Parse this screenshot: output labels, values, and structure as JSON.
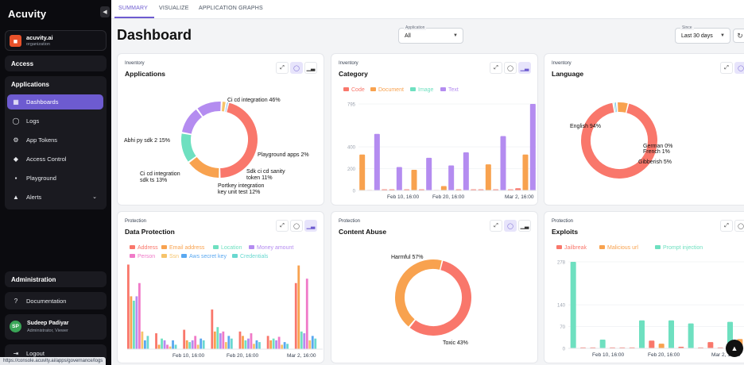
{
  "app": {
    "logo": "Acuvity",
    "collapse_icon": "chevron-left-icon"
  },
  "org": {
    "name": "acuvity.ai",
    "type": "organization"
  },
  "sidebar": {
    "access_title": "Access",
    "applications_title": "Applications",
    "items": [
      {
        "label": "Dashboards",
        "icon": "dashboard-icon",
        "active": true
      },
      {
        "label": "Logs",
        "icon": "logs-icon"
      },
      {
        "label": "App Tokens",
        "icon": "token-icon"
      },
      {
        "label": "Access Control",
        "icon": "shield-icon"
      },
      {
        "label": "Playground",
        "icon": "chat-icon"
      },
      {
        "label": "Alerts",
        "icon": "bell-icon"
      }
    ],
    "administration_title": "Administration",
    "documentation_label": "Documentation",
    "user": {
      "initials": "SP",
      "name": "Sudeep Padiyar",
      "role": "Administrator, Viewer"
    },
    "logout_label": "Logout"
  },
  "status_url": "https://console.acuvity.ai/apps/governance/logs",
  "tabs": [
    "SUMMARY",
    "VISUALIZE",
    "APPLICATION GRAPHS"
  ],
  "page_title": "Dashboard",
  "filters": {
    "application": {
      "label": "Application",
      "value": "All"
    },
    "since": {
      "label": "Since",
      "value": "Last 30 days"
    }
  },
  "colors": {
    "accent": "#6d5bd0",
    "coral": "#f9776b",
    "orange": "#f8a24f",
    "teal": "#6ee0c0",
    "purple": "#b48cf0",
    "pink": "#f07ac8",
    "gold": "#f6c36a",
    "blue": "#5aa8f0",
    "cyan": "#69d8d0"
  },
  "cards": {
    "applications": {
      "kicker": "Inventory",
      "title": "Applications"
    },
    "category": {
      "kicker": "Inventory",
      "title": "Category"
    },
    "language": {
      "kicker": "Inventory",
      "title": "Language"
    },
    "data_protection": {
      "kicker": "Protection",
      "title": "Data Protection"
    },
    "content_abuse": {
      "kicker": "Protection",
      "title": "Content Abuse"
    },
    "exploits": {
      "kicker": "Protection",
      "title": "Exploits"
    }
  },
  "chart_data": [
    {
      "id": "applications",
      "type": "pie",
      "donut": true,
      "slices": [
        {
          "label": "Ci cd integration 46%",
          "value": 46,
          "color": "#f9776b"
        },
        {
          "label": "Abhi py sdk 2 15%",
          "value": 15,
          "color": "#f8a24f"
        },
        {
          "label": "Ci cd integration sdk ts 13%",
          "value": 13,
          "color": "#6ee0c0"
        },
        {
          "label": "Portkey integration key unit test 12%",
          "value": 12,
          "color": "#b48cf0"
        },
        {
          "label": "Sdk ci cd sanity token 11%",
          "value": 11,
          "color": "#b48cf0"
        },
        {
          "label": "Playground apps 2%",
          "value": 2,
          "color": "#f6c36a"
        },
        {
          "label": "",
          "value": 1,
          "color": "#5aa8f0"
        }
      ]
    },
    {
      "id": "category",
      "type": "bar",
      "legend": [
        "Code",
        "Document",
        "Image",
        "Text"
      ],
      "legend_colors": [
        "#f9776b",
        "#f8a24f",
        "#6ee0c0",
        "#b48cf0"
      ],
      "y_ticks": [
        "795",
        "400",
        "200",
        "0"
      ],
      "ylim": [
        0,
        795
      ],
      "x_ticks": [
        "Feb 10, 16:00",
        "Feb 20, 16:00",
        "Mar 2, 16:00"
      ],
      "bars": [
        {
          "v": 330,
          "c": "#f8a24f"
        },
        {
          "v": 5,
          "c": "#f9776b"
        },
        {
          "v": 520,
          "c": "#b48cf0"
        },
        {
          "v": 10,
          "c": "#f9776b"
        },
        {
          "v": 10,
          "c": "#f9776b"
        },
        {
          "v": 215,
          "c": "#b48cf0"
        },
        {
          "v": 10,
          "c": "#f9776b"
        },
        {
          "v": 190,
          "c": "#f8a24f"
        },
        {
          "v": 10,
          "c": "#f9776b"
        },
        {
          "v": 300,
          "c": "#b48cf0"
        },
        {
          "v": 5,
          "c": "#f9776b"
        },
        {
          "v": 40,
          "c": "#f8a24f"
        },
        {
          "v": 230,
          "c": "#b48cf0"
        },
        {
          "v": 10,
          "c": "#f9776b"
        },
        {
          "v": 350,
          "c": "#b48cf0"
        },
        {
          "v": 10,
          "c": "#f9776b"
        },
        {
          "v": 10,
          "c": "#f9776b"
        },
        {
          "v": 240,
          "c": "#f8a24f"
        },
        {
          "v": 10,
          "c": "#f9776b"
        },
        {
          "v": 500,
          "c": "#b48cf0"
        },
        {
          "v": 10,
          "c": "#f9776b"
        },
        {
          "v": 20,
          "c": "#f9776b"
        },
        {
          "v": 330,
          "c": "#f8a24f"
        },
        {
          "v": 795,
          "c": "#b48cf0"
        }
      ]
    },
    {
      "id": "language",
      "type": "pie",
      "donut": true,
      "slices": [
        {
          "label": "English 94%",
          "value": 94,
          "color": "#f9776b"
        },
        {
          "label": "German 0%",
          "value": 0.5,
          "color": "#6ee0c0"
        },
        {
          "label": "French 1%",
          "value": 1,
          "color": "#5aa8f0"
        },
        {
          "label": "Gibberish 5%",
          "value": 5,
          "color": "#f8a24f"
        }
      ]
    },
    {
      "id": "data_protection",
      "type": "bar",
      "legend": [
        "Address",
        "Email address",
        "Location",
        "Money amount",
        "Person",
        "Ssn",
        "Aws secret key",
        "Credentials"
      ],
      "legend_colors": [
        "#f9776b",
        "#f8a24f",
        "#6ee0c0",
        "#b48cf0",
        "#f07ac8",
        "#f6c36a",
        "#5aa8f0",
        "#69d8d0"
      ],
      "x_ticks": [
        "Feb 10, 16:00",
        "Feb 20, 16:00",
        "Mar 2, 16:00"
      ],
      "ylim": [
        0,
        100
      ],
      "groups": [
        [
          96,
          60,
          55,
          60,
          75,
          20,
          10,
          15
        ],
        [
          18,
          5,
          12,
          10,
          5,
          3,
          10,
          5
        ],
        [
          22,
          10,
          8,
          10,
          15,
          5,
          12,
          10
        ],
        [
          45,
          20,
          25,
          18,
          20,
          8,
          15,
          12
        ],
        [
          20,
          15,
          10,
          12,
          18,
          6,
          10,
          8
        ],
        [
          15,
          10,
          12,
          10,
          14,
          5,
          8,
          6
        ],
        [
          75,
          95,
          20,
          18,
          80,
          10,
          15,
          12
        ]
      ]
    },
    {
      "id": "content_abuse",
      "type": "pie",
      "donut": true,
      "slices": [
        {
          "label": "Harmful 57%",
          "value": 57,
          "color": "#f9776b"
        },
        {
          "label": "Toxic 43%",
          "value": 43,
          "color": "#f8a24f"
        }
      ]
    },
    {
      "id": "exploits",
      "type": "bar",
      "legend": [
        "Jailbreak",
        "Malicious url",
        "Prompt injection"
      ],
      "legend_colors": [
        "#f9776b",
        "#f8a24f",
        "#6ee0c0"
      ],
      "y_ticks": [
        "278",
        "140",
        "70",
        "0"
      ],
      "ylim": [
        0,
        278
      ],
      "x_ticks": [
        "Feb 10, 16:00",
        "Feb 20, 16:00",
        "Mar 2, 16:00"
      ],
      "bars": [
        {
          "v": 278,
          "c": "#6ee0c0"
        },
        {
          "v": 3,
          "c": "#f9776b"
        },
        {
          "v": 3,
          "c": "#f9776b"
        },
        {
          "v": 28,
          "c": "#6ee0c0"
        },
        {
          "v": 3,
          "c": "#f9776b"
        },
        {
          "v": 3,
          "c": "#f9776b"
        },
        {
          "v": 3,
          "c": "#f9776b"
        },
        {
          "v": 90,
          "c": "#6ee0c0"
        },
        {
          "v": 25,
          "c": "#f9776b"
        },
        {
          "v": 15,
          "c": "#f8a24f"
        },
        {
          "v": 90,
          "c": "#6ee0c0"
        },
        {
          "v": 5,
          "c": "#f9776b"
        },
        {
          "v": 80,
          "c": "#6ee0c0"
        },
        {
          "v": 3,
          "c": "#f9776b"
        },
        {
          "v": 20,
          "c": "#f9776b"
        },
        {
          "v": 3,
          "c": "#f9776b"
        },
        {
          "v": 85,
          "c": "#6ee0c0"
        },
        {
          "v": 30,
          "c": "#f8a24f"
        }
      ]
    }
  ]
}
